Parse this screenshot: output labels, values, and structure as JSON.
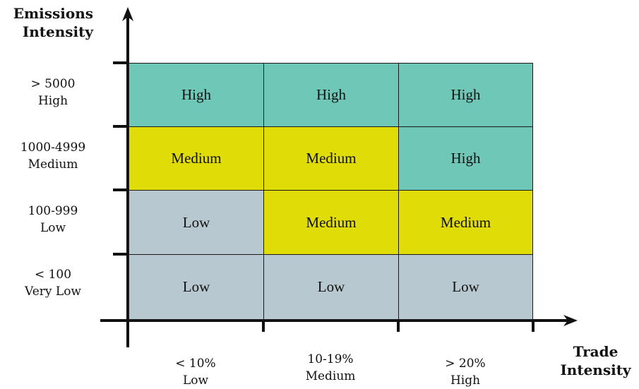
{
  "y_axis": {
    "title": [
      "Emissions",
      "Intensity"
    ],
    "labels": [
      {
        "range": "> 5000",
        "level": "High"
      },
      {
        "range": "1000-4999",
        "level": "Medium"
      },
      {
        "range": "100-999",
        "level": "Low"
      },
      {
        "range": "< 100",
        "level": "Very Low"
      }
    ]
  },
  "x_axis": {
    "title": [
      "Trade",
      "Intensity"
    ],
    "labels": [
      {
        "range": "< 10%",
        "level": "Low"
      },
      {
        "range": "10-19%",
        "level": "Medium"
      },
      {
        "range": "> 20%",
        "level": "High"
      }
    ]
  },
  "matrix": [
    [
      "High",
      "High",
      "High"
    ],
    [
      "Medium",
      "Medium",
      "High"
    ],
    [
      "Low",
      "Medium",
      "Medium"
    ],
    [
      "Low",
      "Low",
      "Low"
    ]
  ],
  "colors": {
    "High": "#6fc8b7",
    "Medium": "#dfdc07",
    "Low": "#b8c8d0",
    "axis": "#111111"
  }
}
